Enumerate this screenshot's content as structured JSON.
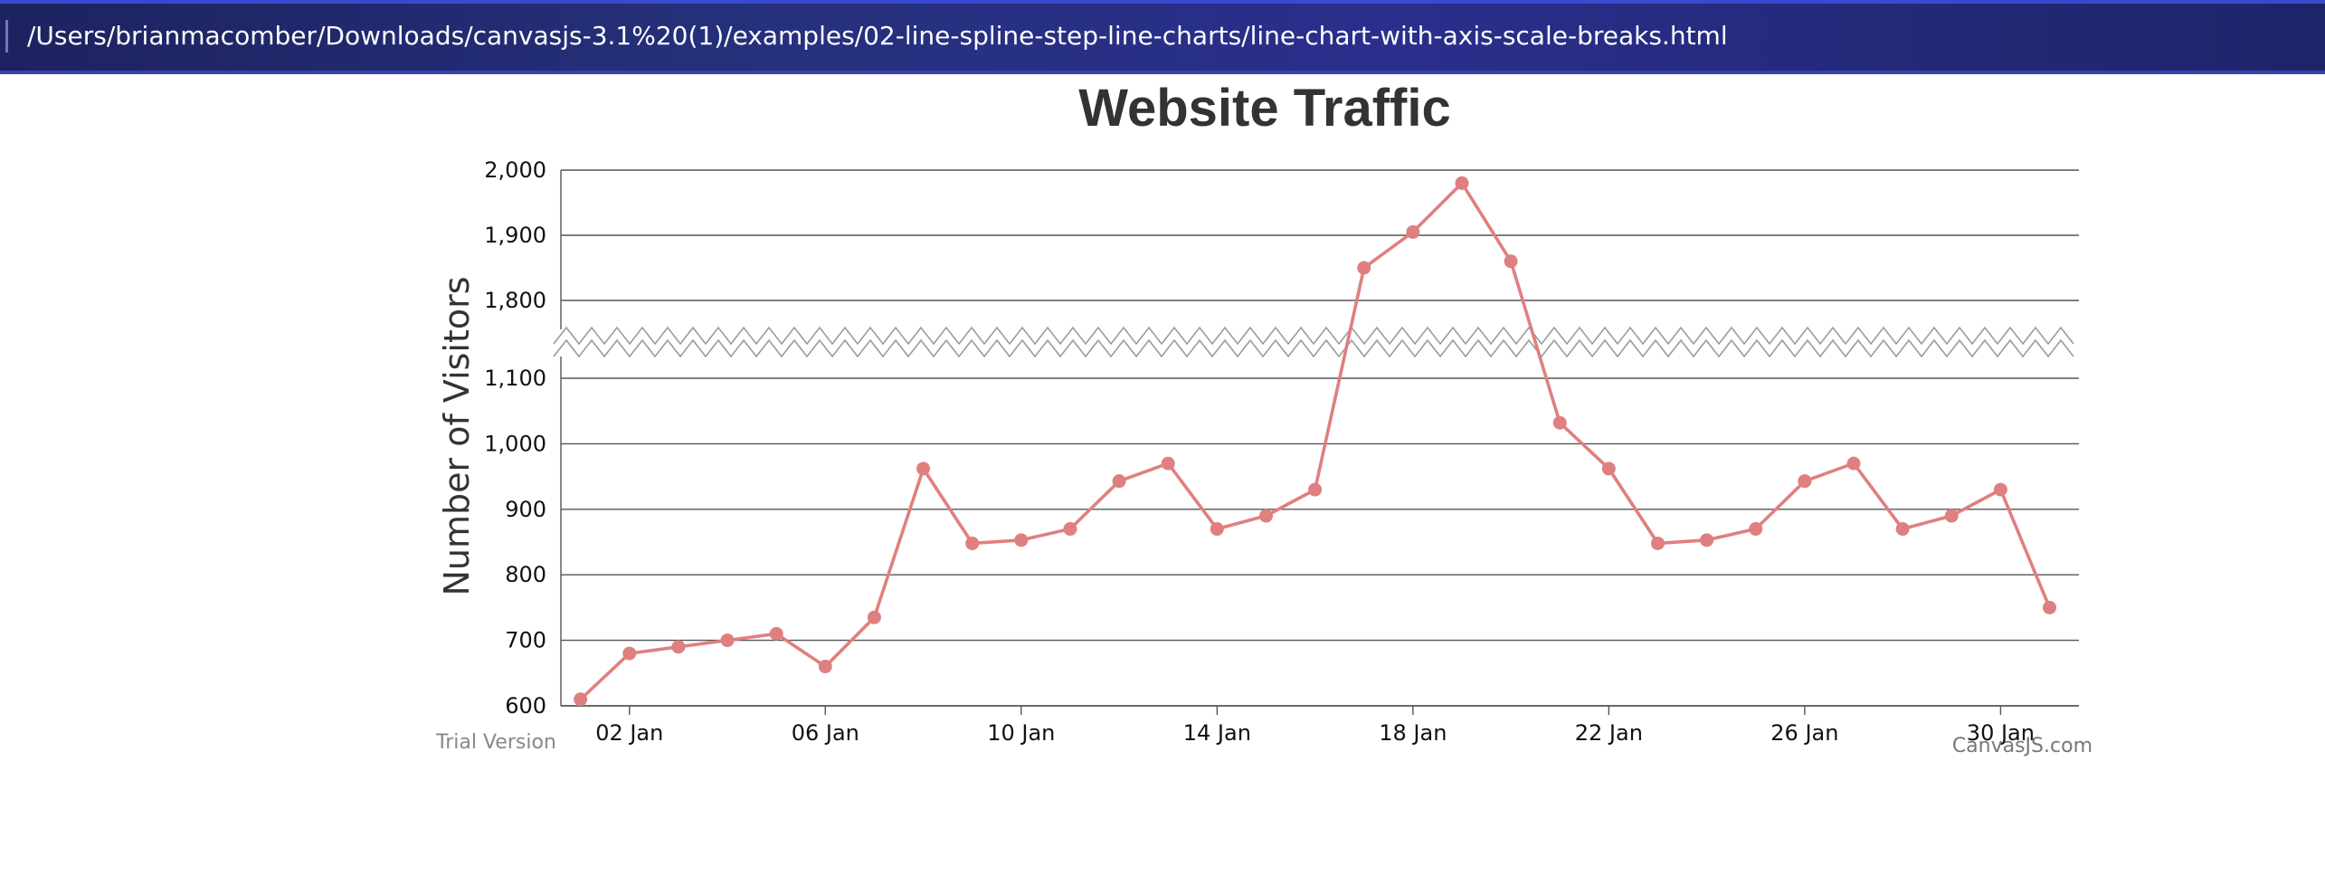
{
  "browser": {
    "url": "/Users/brianmacomber/Downloads/canvasjs-3.1%20(1)/examples/02-line-spline-step-line-charts/line-chart-with-axis-scale-breaks.html"
  },
  "watermarks": {
    "trial": "Trial Version",
    "brand": "CanvasJS.com"
  },
  "colors": {
    "series": "#e07f7f",
    "grid": "#555555",
    "title": "#333333",
    "break_band": "#ffffff",
    "break_zigzag": "#9a9a9a"
  },
  "chart_data": {
    "type": "line",
    "title": "Website Traffic",
    "ylabel": "Number of Visitors",
    "xlabel": "",
    "ylim": [
      600,
      2000
    ],
    "y_ticks": [
      "600",
      "700",
      "800",
      "900",
      "1,000",
      "1,100",
      "1,800",
      "1,900",
      "2,000"
    ],
    "y_tick_values": [
      600,
      700,
      800,
      900,
      1000,
      1100,
      1800,
      1900,
      2000
    ],
    "scale_break": {
      "start": 1100,
      "end": 1800,
      "type": "zigzag"
    },
    "x_ticks": [
      "02 Jan",
      "06 Jan",
      "10 Jan",
      "14 Jan",
      "18 Jan",
      "22 Jan",
      "26 Jan",
      "30 Jan"
    ],
    "x_tick_days": [
      2,
      6,
      10,
      14,
      18,
      22,
      26,
      30
    ],
    "x_range_days": [
      0.6,
      31.6
    ],
    "grid": true,
    "series": [
      {
        "x": [
          1,
          2,
          3,
          4,
          5,
          6,
          7,
          8,
          9,
          10,
          11,
          12,
          13,
          14,
          15,
          16,
          17,
          18,
          19,
          20,
          21,
          22,
          23,
          24,
          25,
          26,
          27,
          28,
          29,
          30,
          31
        ],
        "values": [
          610,
          680,
          690,
          700,
          710,
          660,
          735,
          962,
          848,
          853,
          870,
          943,
          970,
          870,
          890,
          930,
          1850,
          1905,
          1980,
          1860,
          1032,
          962,
          848,
          853,
          870,
          943,
          970,
          870,
          890,
          930,
          750
        ]
      }
    ]
  }
}
